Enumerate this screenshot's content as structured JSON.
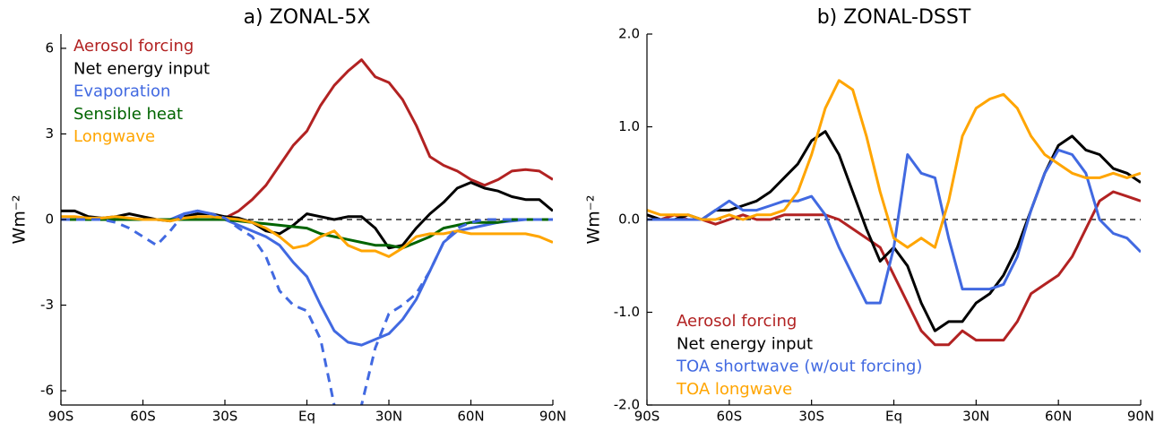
{
  "chart_data": [
    {
      "type": "line",
      "title": "a) ZONAL-5X",
      "ylabel": "Wm⁻²",
      "legend": "upper left",
      "hline": 0,
      "x": [
        -90,
        -85,
        -80,
        -75,
        -70,
        -65,
        -60,
        -55,
        -50,
        -45,
        -40,
        -35,
        -30,
        -25,
        -20,
        -15,
        -10,
        -5,
        0,
        5,
        10,
        15,
        20,
        25,
        30,
        35,
        40,
        45,
        50,
        55,
        60,
        65,
        70,
        75,
        80,
        85,
        90
      ],
      "xlim": [
        -90,
        90
      ],
      "xticks": [
        {
          "value": -90,
          "label": "90S"
        },
        {
          "value": -60,
          "label": "60S"
        },
        {
          "value": -30,
          "label": "30S"
        },
        {
          "value": 0,
          "label": "Eq"
        },
        {
          "value": 30,
          "label": "30N"
        },
        {
          "value": 60,
          "label": "60N"
        },
        {
          "value": 90,
          "label": "90N"
        }
      ],
      "ylim": [
        -6.5,
        6.5
      ],
      "yticks": [
        6,
        3,
        0,
        -3,
        -6
      ],
      "series": [
        {
          "name": "Aerosol forcing",
          "color": "#b22222",
          "values": [
            0,
            0,
            0,
            0,
            0,
            0,
            0,
            0,
            0,
            0,
            0,
            0,
            0.05,
            0.3,
            0.7,
            1.2,
            1.9,
            2.6,
            3.1,
            4.0,
            4.7,
            5.2,
            5.6,
            5.0,
            4.8,
            4.2,
            3.3,
            2.2,
            1.9,
            1.7,
            1.4,
            1.2,
            1.4,
            1.7,
            1.75,
            1.7,
            1.4
          ]
        },
        {
          "name": "Net energy input",
          "color": "#000000",
          "values": [
            0.3,
            0.3,
            0.1,
            0.05,
            0.1,
            0.2,
            0.1,
            0,
            -0.05,
            0.1,
            0.2,
            0.2,
            0.1,
            0.05,
            -0.1,
            -0.4,
            -0.5,
            -0.2,
            0.2,
            0.1,
            0,
            0.1,
            0.1,
            -0.3,
            -1.0,
            -0.9,
            -0.3,
            0.2,
            0.6,
            1.1,
            1.3,
            1.1,
            1.0,
            0.8,
            0.7,
            0.7,
            0.3
          ]
        },
        {
          "name": "Evaporation",
          "color": "#4169e1",
          "values": [
            0,
            0,
            0,
            0,
            0,
            0,
            0,
            0,
            0,
            0.2,
            0.3,
            0.2,
            0,
            -0.2,
            -0.4,
            -0.6,
            -0.9,
            -1.5,
            -2.0,
            -3.0,
            -3.9,
            -4.3,
            -4.4,
            -4.2,
            -4.0,
            -3.5,
            -2.8,
            -1.8,
            -0.8,
            -0.4,
            -0.3,
            -0.2,
            -0.1,
            -0.05,
            0,
            0,
            0
          ]
        },
        {
          "name": "Sensible heat",
          "color": "#006400",
          "values": [
            0,
            0,
            0,
            0,
            0,
            0,
            0,
            0,
            0,
            0,
            0,
            0,
            0,
            -0.05,
            -0.1,
            -0.15,
            -0.2,
            -0.25,
            -0.3,
            -0.5,
            -0.6,
            -0.7,
            -0.8,
            -0.9,
            -0.9,
            -1.0,
            -0.8,
            -0.6,
            -0.3,
            -0.2,
            -0.1,
            -0.1,
            -0.1,
            0,
            0,
            0,
            0
          ]
        },
        {
          "name": "Longwave",
          "color": "#ffa500",
          "values": [
            0.1,
            0.1,
            0.05,
            0.05,
            0.1,
            0.05,
            0,
            0,
            -0.05,
            0.05,
            0.1,
            0.1,
            0.05,
            0,
            -0.1,
            -0.3,
            -0.6,
            -1.0,
            -0.9,
            -0.6,
            -0.4,
            -0.9,
            -1.1,
            -1.1,
            -1.3,
            -1.0,
            -0.6,
            -0.5,
            -0.5,
            -0.4,
            -0.5,
            -0.5,
            -0.5,
            -0.5,
            -0.5,
            -0.6,
            -0.8
          ]
        },
        {
          "name": null,
          "color": "#4169e1",
          "dashed": true,
          "values": [
            0,
            0,
            0,
            0,
            -0.1,
            -0.3,
            -0.6,
            -0.9,
            -0.4,
            0.2,
            0.3,
            0.2,
            0.05,
            -0.3,
            -0.6,
            -1.3,
            -2.5,
            -3.0,
            -3.2,
            -4.2,
            -6.5,
            -7.2,
            -6.5,
            -4.5,
            -3.3,
            -3.0,
            -2.6,
            -1.8,
            -0.8,
            -0.3,
            -0.1,
            0,
            0,
            0,
            0,
            0,
            0
          ]
        }
      ]
    },
    {
      "type": "line",
      "title": "b) ZONAL-DSST",
      "ylabel": "Wm⁻²",
      "legend": "lower left",
      "hline": 0,
      "x": [
        -90,
        -85,
        -80,
        -75,
        -70,
        -65,
        -60,
        -55,
        -50,
        -45,
        -40,
        -35,
        -30,
        -25,
        -20,
        -15,
        -10,
        -5,
        0,
        5,
        10,
        15,
        20,
        25,
        30,
        35,
        40,
        45,
        50,
        55,
        60,
        65,
        70,
        75,
        80,
        85,
        90
      ],
      "xlim": [
        -90,
        90
      ],
      "xticks": [
        {
          "value": -90,
          "label": "90S"
        },
        {
          "value": -60,
          "label": "60S"
        },
        {
          "value": -30,
          "label": "30S"
        },
        {
          "value": 0,
          "label": "Eq"
        },
        {
          "value": 30,
          "label": "30N"
        },
        {
          "value": 60,
          "label": "60N"
        },
        {
          "value": 90,
          "label": "90N"
        }
      ],
      "ylim": [
        -2,
        2
      ],
      "yticks": [
        {
          "value": 2,
          "label": "2.0"
        },
        {
          "value": 1,
          "label": "1.0"
        },
        {
          "value": 0,
          "label": "0.0"
        },
        {
          "value": -1,
          "label": "-1.0"
        },
        {
          "value": -2,
          "label": "-2.0"
        }
      ],
      "series": [
        {
          "name": "Aerosol forcing",
          "color": "#b22222",
          "values": [
            0.05,
            0,
            0.05,
            0,
            0,
            -0.05,
            0,
            0.05,
            0,
            0,
            0.05,
            0.05,
            0.05,
            0.05,
            0,
            -0.1,
            -0.2,
            -0.3,
            -0.6,
            -0.9,
            -1.2,
            -1.35,
            -1.35,
            -1.2,
            -1.3,
            -1.3,
            -1.3,
            -1.1,
            -0.8,
            -0.7,
            -0.6,
            -0.4,
            -0.1,
            0.2,
            0.3,
            0.25,
            0.2
          ]
        },
        {
          "name": "Net energy input",
          "color": "#000000",
          "values": [
            0.05,
            0,
            0,
            0.05,
            0,
            0.1,
            0.1,
            0.15,
            0.2,
            0.3,
            0.45,
            0.6,
            0.85,
            0.95,
            0.7,
            0.3,
            -0.1,
            -0.45,
            -0.3,
            -0.5,
            -0.9,
            -1.2,
            -1.1,
            -1.1,
            -0.9,
            -0.8,
            -0.6,
            -0.3,
            0.1,
            0.5,
            0.8,
            0.9,
            0.75,
            0.7,
            0.55,
            0.5,
            0.4
          ]
        },
        {
          "name": "TOA shortwave (w/out forcing)",
          "color": "#4169e1",
          "values": [
            0,
            0,
            0,
            0,
            0,
            0.1,
            0.2,
            0.1,
            0.1,
            0.15,
            0.2,
            0.2,
            0.25,
            0.05,
            -0.3,
            -0.6,
            -0.9,
            -0.9,
            -0.3,
            0.7,
            0.5,
            0.45,
            -0.2,
            -0.75,
            -0.75,
            -0.75,
            -0.7,
            -0.4,
            0.1,
            0.5,
            0.75,
            0.7,
            0.5,
            0,
            -0.15,
            -0.2,
            -0.35
          ]
        },
        {
          "name": "TOA longwave",
          "color": "#ffa500",
          "values": [
            0.1,
            0.05,
            0.05,
            0.05,
            0,
            0,
            0.05,
            0,
            0.05,
            0.05,
            0.1,
            0.3,
            0.7,
            1.2,
            1.5,
            1.4,
            0.9,
            0.3,
            -0.2,
            -0.3,
            -0.2,
            -0.3,
            0.2,
            0.9,
            1.2,
            1.3,
            1.35,
            1.2,
            0.9,
            0.7,
            0.6,
            0.5,
            0.45,
            0.45,
            0.5,
            0.45,
            0.5
          ]
        }
      ]
    }
  ]
}
